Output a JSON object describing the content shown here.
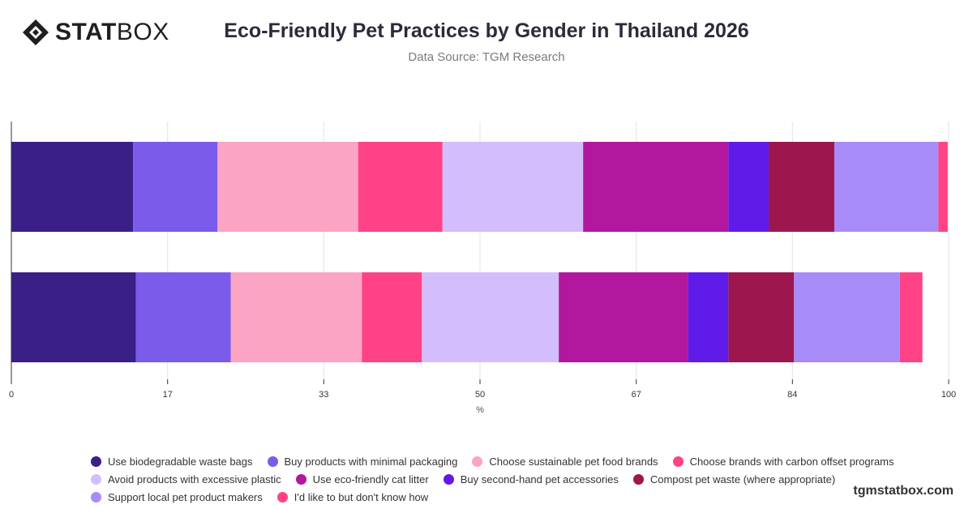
{
  "brand": {
    "logo_bold": "STAT",
    "logo_light": "BOX",
    "watermark": "tgmstatbox.com"
  },
  "chart_data": {
    "type": "bar",
    "orientation": "horizontal",
    "stacked": true,
    "title": "Eco-Friendly Pet Practices by Gender in Thailand 2026",
    "subtitle": "Data Source: TGM Research",
    "xlabel": "%",
    "ylabel": "",
    "xlim": [
      0,
      100
    ],
    "x_ticks": [
      "0",
      "17",
      "33",
      "50",
      "67",
      "84",
      "100"
    ],
    "x_tick_values": [
      0,
      16.67,
      33.33,
      50,
      66.67,
      83.33,
      100
    ],
    "categories": [
      "",
      ""
    ],
    "grid": true,
    "legend_position": "bottom",
    "series": [
      {
        "name": "Use biodegradable waste bags",
        "color": "#3a1f87",
        "values": [
          13.0,
          13.3
        ]
      },
      {
        "name": "Buy products with minimal packaging",
        "color": "#7b5bea",
        "values": [
          9.0,
          10.1
        ]
      },
      {
        "name": "Choose sustainable pet food brands",
        "color": "#fba4c3",
        "values": [
          15.0,
          14.0
        ]
      },
      {
        "name": "Choose brands with carbon offset programs",
        "color": "#ff4286",
        "values": [
          9.0,
          6.4
        ]
      },
      {
        "name": "Avoid products with excessive plastic",
        "color": "#d4bdfb",
        "values": [
          15.0,
          14.6
        ]
      },
      {
        "name": "Use eco-friendly cat litter",
        "color": "#b1189e",
        "values": [
          15.5,
          13.8
        ]
      },
      {
        "name": "Buy second-hand pet accessories",
        "color": "#5f1be8",
        "values": [
          4.3,
          4.3
        ]
      },
      {
        "name": "Compost pet waste (where appropriate)",
        "color": "#9c174d",
        "values": [
          7.0,
          7.0
        ]
      },
      {
        "name": "Support local pet product makers",
        "color": "#a78cf9",
        "values": [
          11.1,
          11.3
        ]
      },
      {
        "name": "I'd like to but don't know how",
        "color": "#ff4286",
        "values": [
          1.0,
          2.4
        ]
      }
    ]
  }
}
